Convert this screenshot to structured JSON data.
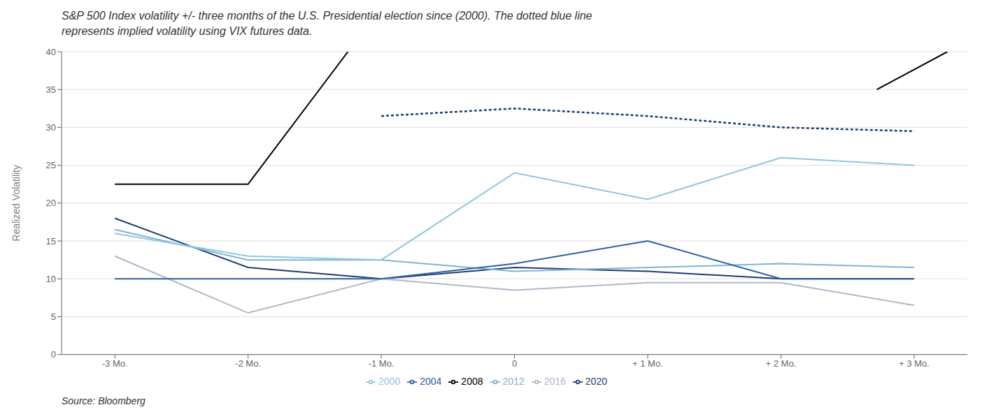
{
  "chart_data": {
    "type": "line",
    "title": "S&P 500 Index volatility +/- three months of the U.S. Presidential election since (2000). The dotted blue line\nrepresents implied volatility using VIX futures data.",
    "y_label": "Realized Volatility",
    "annotations": [
      "Source: Bloomberg"
    ],
    "x": [
      -3,
      -2,
      -1,
      0,
      1,
      2,
      3
    ],
    "xlim": [
      -3.4,
      3.4
    ],
    "xticks": [
      {
        "value": -3,
        "label": "-3 Mo."
      },
      {
        "value": -2,
        "label": "-2 Mo."
      },
      {
        "value": -1,
        "label": "-1 Mo."
      },
      0,
      {
        "value": 1,
        "label": "+ 1 Mo."
      },
      {
        "value": 2,
        "label": "+ 2 Mo."
      },
      {
        "value": 3,
        "label": "+ 3 Mo."
      }
    ],
    "ylim": [
      0,
      40
    ],
    "yticks": [
      0,
      5,
      10,
      15,
      20,
      25,
      30,
      35,
      40
    ],
    "grid": "y",
    "legend": "bottom",
    "series": [
      {
        "name": "2020",
        "color": "#1f3d6e",
        "line_style": "solid",
        "values": [
          18,
          11.5,
          10,
          11.5,
          11,
          10,
          10
        ]
      },
      {
        "name": "2016",
        "color": "#adb9c9",
        "line_style": "solid",
        "values": [
          13,
          5.5,
          10,
          8.5,
          9.5,
          9.5,
          6.5
        ]
      },
      {
        "name": "2012",
        "color": "#7fb4d4",
        "line_style": "solid",
        "values": [
          16.5,
          12.5,
          12.5,
          11,
          11.5,
          12,
          11.5
        ]
      },
      {
        "name": "2008",
        "color": "#000000",
        "line_style": "solid",
        "x": [
          -3,
          -2,
          -1.25
        ],
        "values": [
          22.5,
          22.5,
          40
        ]
      },
      {
        "name": "2004",
        "color": "#2e5fa3",
        "line_style": "solid",
        "values": [
          10,
          10,
          10,
          12,
          15,
          10,
          10
        ]
      },
      {
        "name": "2000",
        "color": "#92c6e0",
        "line_style": "solid",
        "values": [
          16,
          13,
          12.5,
          24,
          20.5,
          26,
          25
        ]
      },
      {
        "color": "#1f3d6e",
        "line_style": "dotted",
        "values": [
          null,
          null,
          31.5,
          32.5,
          31.5,
          30,
          29.5
        ]
      },
      {
        "color": "#000000",
        "line_style": "solid",
        "x": [
          2.72,
          3.25
        ],
        "values": [
          35,
          40
        ]
      }
    ]
  }
}
